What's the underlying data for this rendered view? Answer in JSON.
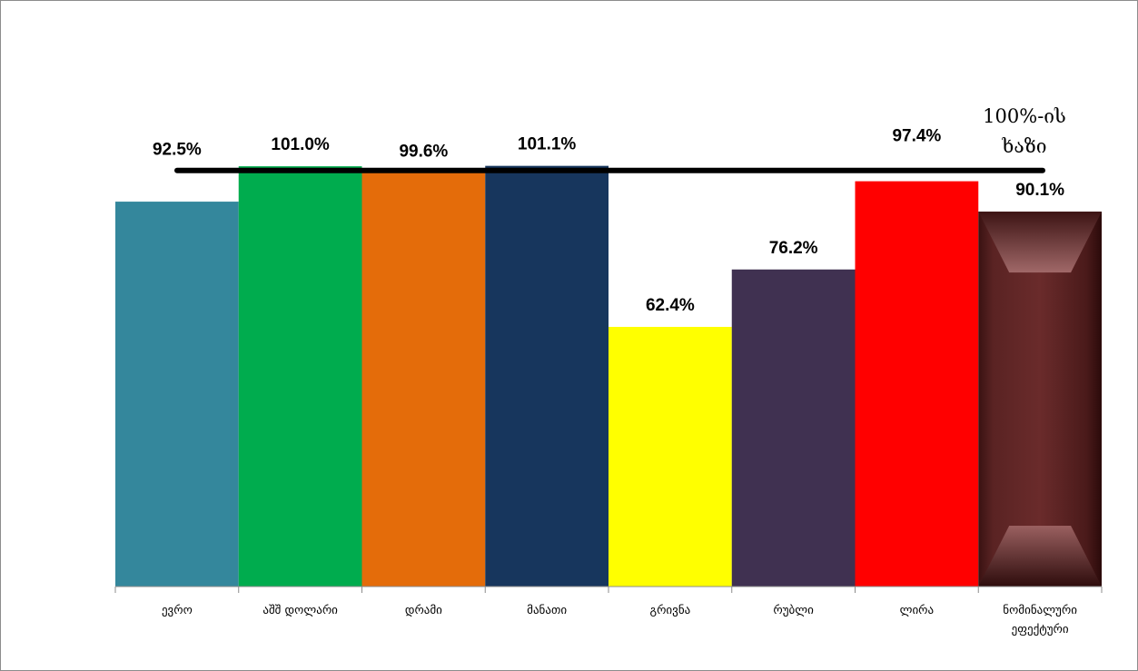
{
  "chart_data": {
    "type": "bar",
    "categories": [
      "ევრო",
      "აშშ დოლარი",
      "დრამი",
      "მანათი",
      "გრივნა",
      "რუბლი",
      "ლირა",
      "ნომინალური ეფექტური"
    ],
    "category_lines": [
      [
        "ევრო"
      ],
      [
        "აშშ დოლარი"
      ],
      [
        "დრამი"
      ],
      [
        "მანათი"
      ],
      [
        "გრივნა"
      ],
      [
        "რუბლი"
      ],
      [
        "ლირა"
      ],
      [
        "ნომინალური",
        "ეფექტური"
      ]
    ],
    "values": [
      92.5,
      101.0,
      99.6,
      101.1,
      62.4,
      76.2,
      97.4,
      90.1
    ],
    "data_labels": [
      "92.5%",
      "101.0%",
      "99.6%",
      "101.1%",
      "62.4%",
      "76.2%",
      "97.4%",
      "90.1%"
    ],
    "colors": [
      "#34879C",
      "#00AC4E",
      "#E46C0A",
      "#17365D",
      "#FFFF00",
      "#403151",
      "#FF0000",
      "#5A2424"
    ],
    "reference_line": {
      "value": 100,
      "label_lines": [
        "100%-ის",
        "ხაზი"
      ]
    },
    "ylim": [
      0,
      110
    ],
    "grid": false,
    "title": "",
    "xlabel": "",
    "ylabel": ""
  }
}
